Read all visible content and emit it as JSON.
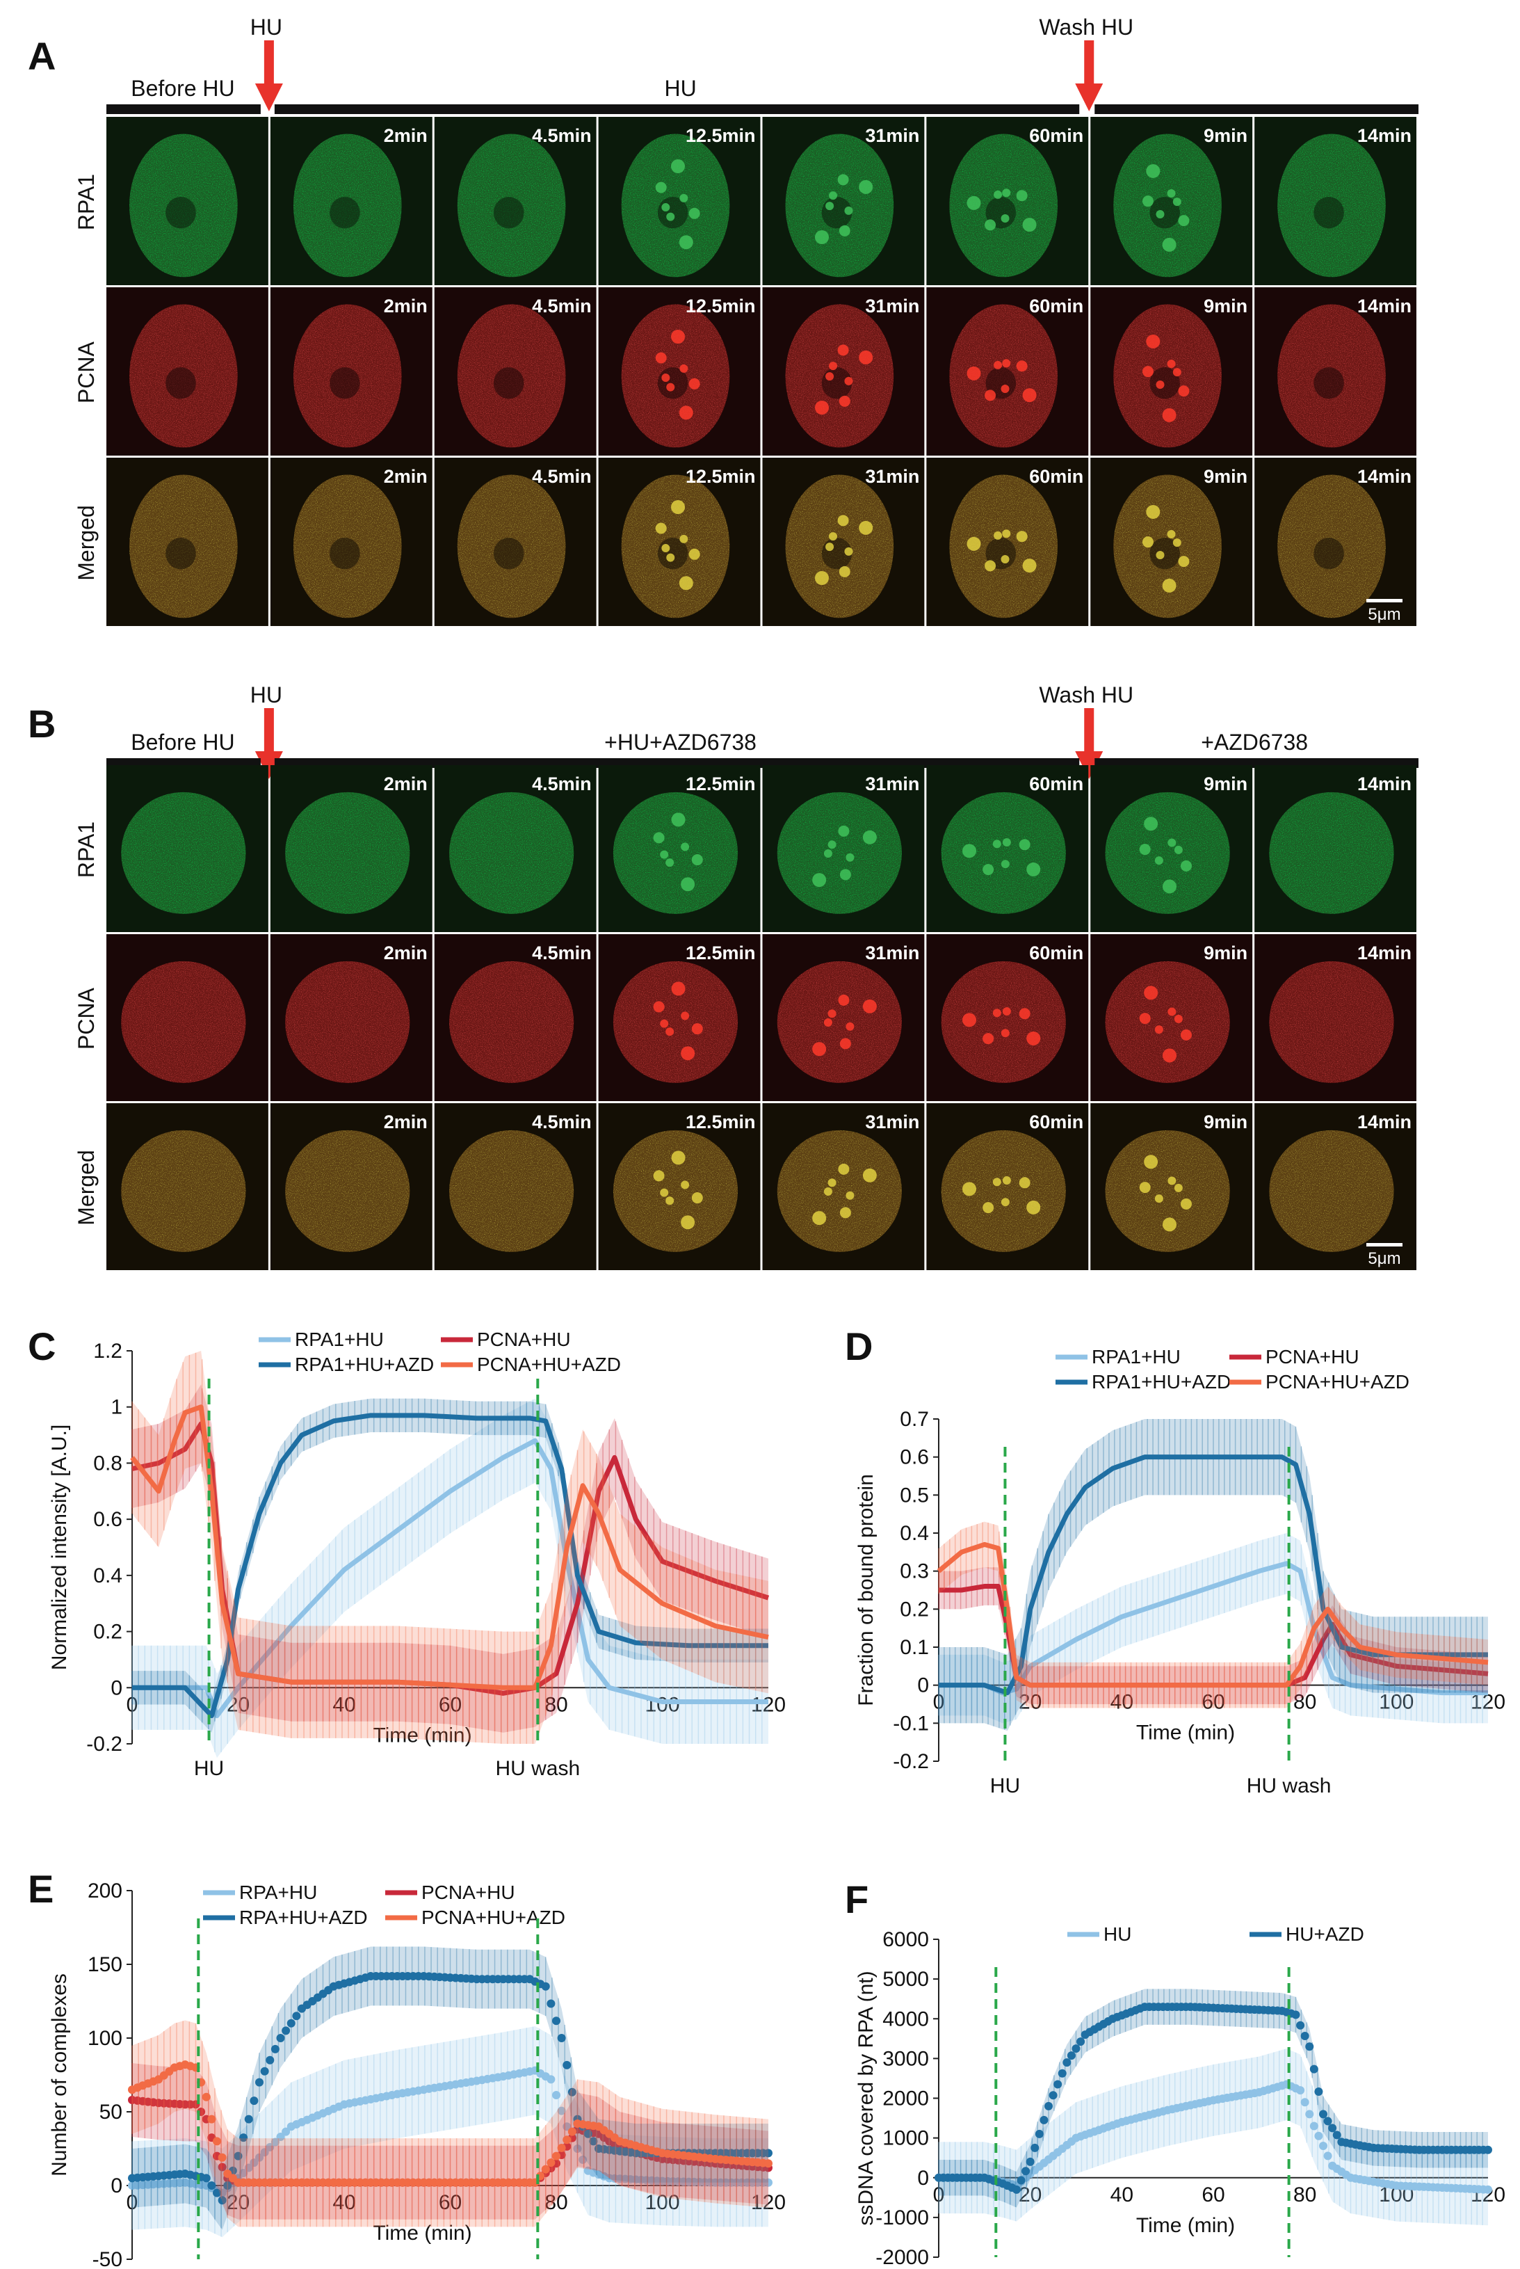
{
  "colors": {
    "rpa_hu": "#8fc2e6",
    "rpa_azd": "#1f6fa3",
    "pcna_hu": "#c8283a",
    "pcna_azd": "#f26b45",
    "marker": "#2aa84a",
    "arrow": "#e8322b"
  },
  "panels": [
    {
      "id": "A",
      "label": "A",
      "treat_label": "HU",
      "wash_label": "Wash HU",
      "bar_before": "Before HU",
      "bar_during": "HU",
      "bar_after": "",
      "rows": [
        "RPA1",
        "PCNA",
        "Merged"
      ],
      "time_labels": [
        "",
        "2min",
        "4.5min",
        "12.5min",
        "31min",
        "60min",
        "9min",
        "14min"
      ],
      "scale_bar": "5μm"
    },
    {
      "id": "B",
      "label": "B",
      "treat_label": "HU",
      "wash_label": "Wash HU",
      "bar_before": "Before HU",
      "bar_during": "+HU+AZD6738",
      "bar_after": "+AZD6738",
      "rows": [
        "RPA1",
        "PCNA",
        "Merged"
      ],
      "time_labels": [
        "",
        "2min",
        "4.5min",
        "12.5min",
        "31min",
        "60min",
        "9min",
        "14min"
      ],
      "scale_bar": "5μm"
    }
  ],
  "chart_data": [
    {
      "id": "C",
      "label": "C",
      "type": "line",
      "ylabel": "Normalized intensity [A.U.]",
      "xlabel": "Time (min)",
      "xlim": [
        0,
        120
      ],
      "ylim": [
        -0.2,
        1.2
      ],
      "xticks": [
        0,
        20,
        40,
        60,
        80,
        100,
        120
      ],
      "yticks": [
        -0.2,
        0,
        0.2,
        0.4,
        0.6,
        0.8,
        1,
        1.2
      ],
      "hu_time": 14.5,
      "wash_time": 76.5,
      "hu_label": "HU",
      "wash_label": "HU wash",
      "series": [
        {
          "name": "RPA1+HU",
          "color": "rpa_hu",
          "x": [
            0,
            10,
            14,
            16,
            20,
            30,
            40,
            50,
            60,
            70,
            76,
            79,
            82,
            86,
            90,
            100,
            110,
            120
          ],
          "values": [
            0,
            0,
            0,
            -0.1,
            0,
            0.22,
            0.42,
            0.56,
            0.7,
            0.82,
            0.88,
            0.78,
            0.45,
            0.1,
            0,
            -0.05,
            -0.05,
            -0.05
          ],
          "err": 0.15
        },
        {
          "name": "PCNA+HU",
          "color": "pcna_hu",
          "x": [
            0,
            5,
            10,
            13,
            15,
            17,
            20,
            30,
            40,
            50,
            60,
            70,
            76,
            80,
            84,
            88,
            91,
            95,
            100,
            110,
            120
          ],
          "values": [
            0.78,
            0.8,
            0.85,
            0.94,
            0.8,
            0.35,
            0.05,
            0.02,
            0.02,
            0.02,
            0.01,
            -0.02,
            0.0,
            0.05,
            0.3,
            0.7,
            0.82,
            0.6,
            0.45,
            0.38,
            0.32
          ],
          "err": 0.14
        },
        {
          "name": "RPA1+HU+AZD",
          "color": "rpa_azd",
          "x": [
            0,
            10,
            15,
            18,
            20,
            24,
            28,
            32,
            38,
            45,
            55,
            65,
            75,
            78,
            81,
            84,
            88,
            95,
            105,
            120
          ],
          "values": [
            0,
            0,
            -0.1,
            0.1,
            0.35,
            0.62,
            0.8,
            0.9,
            0.95,
            0.97,
            0.97,
            0.96,
            0.96,
            0.95,
            0.78,
            0.4,
            0.2,
            0.16,
            0.15,
            0.15
          ],
          "err": 0.06
        },
        {
          "name": "PCNA+HU+AZD",
          "color": "pcna_azd",
          "x": [
            0,
            5,
            8,
            10,
            13,
            15,
            17,
            20,
            30,
            50,
            70,
            76,
            79,
            82,
            85,
            88,
            92,
            100,
            110,
            120
          ],
          "values": [
            0.82,
            0.7,
            0.88,
            0.98,
            1.0,
            0.7,
            0.3,
            0.05,
            0.02,
            0.02,
            0.0,
            0.0,
            0.15,
            0.5,
            0.72,
            0.62,
            0.42,
            0.3,
            0.22,
            0.18
          ],
          "err": 0.2
        }
      ]
    },
    {
      "id": "D",
      "label": "D",
      "type": "line",
      "ylabel": "Fraction of bound protein",
      "xlabel": "Time (min)",
      "xlim": [
        0,
        120
      ],
      "ylim": [
        -0.2,
        0.7
      ],
      "xticks": [
        0,
        20,
        40,
        60,
        80,
        100,
        120
      ],
      "yticks": [
        -0.2,
        -0.1,
        0,
        0.1,
        0.2,
        0.3,
        0.4,
        0.5,
        0.6,
        0.7
      ],
      "hu_time": 14.5,
      "wash_time": 76.5,
      "hu_label": "HU",
      "wash_label": "HU wash",
      "series": [
        {
          "name": "RPA1+HU",
          "color": "rpa_hu",
          "x": [
            0,
            10,
            14,
            17,
            20,
            30,
            40,
            50,
            60,
            70,
            76,
            79,
            82,
            86,
            90,
            100,
            110,
            120
          ],
          "values": [
            0,
            0,
            -0.02,
            -0.01,
            0.05,
            0.12,
            0.18,
            0.22,
            0.26,
            0.3,
            0.32,
            0.3,
            0.15,
            0.02,
            0,
            -0.01,
            -0.02,
            -0.02
          ],
          "err": 0.08
        },
        {
          "name": "PCNA+HU",
          "color": "pcna_hu",
          "x": [
            0,
            5,
            10,
            13,
            15,
            17,
            20,
            40,
            60,
            76,
            80,
            84,
            86,
            90,
            100,
            110,
            120
          ],
          "values": [
            0.25,
            0.25,
            0.26,
            0.26,
            0.15,
            0.02,
            0.0,
            0.0,
            0.0,
            0.0,
            0.02,
            0.12,
            0.16,
            0.08,
            0.05,
            0.04,
            0.03
          ],
          "err": 0.05
        },
        {
          "name": "RPA1+HU+AZD",
          "color": "rpa_azd",
          "x": [
            0,
            10,
            15,
            18,
            20,
            24,
            28,
            32,
            38,
            45,
            55,
            65,
            75,
            78,
            81,
            84,
            88,
            95,
            105,
            120
          ],
          "values": [
            0,
            0,
            -0.02,
            0.05,
            0.2,
            0.35,
            0.45,
            0.52,
            0.57,
            0.6,
            0.6,
            0.6,
            0.6,
            0.58,
            0.45,
            0.2,
            0.1,
            0.08,
            0.08,
            0.08
          ],
          "err": 0.1
        },
        {
          "name": "PCNA+HU+AZD",
          "color": "pcna_azd",
          "x": [
            0,
            5,
            10,
            13,
            15,
            17,
            20,
            40,
            60,
            76,
            79,
            82,
            85,
            88,
            92,
            100,
            110,
            120
          ],
          "values": [
            0.3,
            0.35,
            0.37,
            0.36,
            0.2,
            0.02,
            0.0,
            0.0,
            0.0,
            0.0,
            0.05,
            0.15,
            0.2,
            0.15,
            0.1,
            0.08,
            0.07,
            0.06
          ],
          "err": 0.06
        }
      ]
    },
    {
      "id": "E",
      "label": "E",
      "type": "scatter",
      "ylabel": "Number of complexes",
      "xlabel": "Time (min)",
      "xlim": [
        0,
        120
      ],
      "ylim": [
        -50,
        200
      ],
      "xticks": [
        0,
        20,
        40,
        60,
        80,
        100,
        120
      ],
      "yticks": [
        -50,
        0,
        50,
        100,
        150,
        200
      ],
      "hu_time": 12.5,
      "wash_time": 76.5,
      "hu_label": "HU",
      "wash_label": "HU wash",
      "series": [
        {
          "name": "RPA+HU",
          "color": "rpa_hu",
          "x": [
            0,
            10,
            14,
            17,
            20,
            30,
            40,
            50,
            60,
            70,
            76,
            79,
            82,
            86,
            90,
            100,
            110,
            120
          ],
          "values": [
            0,
            2,
            0,
            -5,
            5,
            40,
            55,
            62,
            68,
            74,
            78,
            72,
            40,
            10,
            5,
            3,
            2,
            2
          ],
          "err": 30
        },
        {
          "name": "PCNA+HU",
          "color": "pcna_hu",
          "x": [
            0,
            5,
            10,
            12,
            14,
            16,
            18,
            20,
            40,
            60,
            76,
            80,
            84,
            88,
            92,
            100,
            110,
            120
          ],
          "values": [
            58,
            56,
            55,
            55,
            45,
            20,
            5,
            2,
            2,
            2,
            2,
            15,
            38,
            35,
            25,
            18,
            15,
            12
          ],
          "err": 25
        },
        {
          "name": "RPA+HU+AZD",
          "color": "rpa_azd",
          "x": [
            0,
            10,
            14,
            17,
            20,
            24,
            28,
            32,
            38,
            45,
            55,
            65,
            75,
            78,
            81,
            84,
            88,
            95,
            105,
            120
          ],
          "values": [
            5,
            8,
            5,
            -10,
            20,
            70,
            100,
            120,
            135,
            142,
            142,
            140,
            140,
            135,
            100,
            45,
            25,
            22,
            22,
            22
          ],
          "err": 20
        },
        {
          "name": "PCNA+HU+AZD",
          "color": "pcna_azd",
          "x": [
            0,
            5,
            8,
            10,
            12,
            14,
            16,
            18,
            20,
            40,
            60,
            76,
            80,
            84,
            88,
            92,
            100,
            110,
            120
          ],
          "values": [
            65,
            72,
            80,
            82,
            80,
            60,
            30,
            8,
            2,
            2,
            2,
            2,
            20,
            42,
            40,
            30,
            22,
            18,
            15
          ],
          "err": 30
        }
      ]
    },
    {
      "id": "F",
      "label": "F",
      "type": "scatter",
      "ylabel": "ssDNA covered by RPA (nt)",
      "xlabel": "Time (min)",
      "xlim": [
        0,
        120
      ],
      "ylim": [
        -2000,
        6000
      ],
      "xticks": [
        0,
        20,
        40,
        60,
        80,
        100,
        120
      ],
      "yticks": [
        -2000,
        -1000,
        0,
        1000,
        2000,
        3000,
        4000,
        5000,
        6000
      ],
      "hu_time": 12.5,
      "wash_time": 76.5,
      "hu_label": "HU",
      "wash_label": "HU wash",
      "series": [
        {
          "name": "HU",
          "color": "rpa_hu",
          "x": [
            0,
            10,
            14,
            17,
            20,
            30,
            40,
            50,
            60,
            70,
            76,
            79,
            82,
            86,
            90,
            100,
            110,
            120
          ],
          "values": [
            0,
            0,
            -100,
            -200,
            100,
            1000,
            1400,
            1700,
            1950,
            2150,
            2350,
            2200,
            1300,
            300,
            0,
            -200,
            -250,
            -300
          ],
          "err": 900
        },
        {
          "name": "HU+AZD",
          "color": "rpa_azd",
          "x": [
            0,
            10,
            14,
            17,
            20,
            24,
            28,
            32,
            38,
            45,
            55,
            65,
            75,
            78,
            81,
            84,
            88,
            95,
            105,
            120
          ],
          "values": [
            0,
            0,
            -150,
            -300,
            400,
            1800,
            2900,
            3600,
            4000,
            4300,
            4300,
            4250,
            4200,
            4100,
            3300,
            1600,
            900,
            750,
            700,
            700
          ],
          "err": 450
        }
      ]
    }
  ]
}
